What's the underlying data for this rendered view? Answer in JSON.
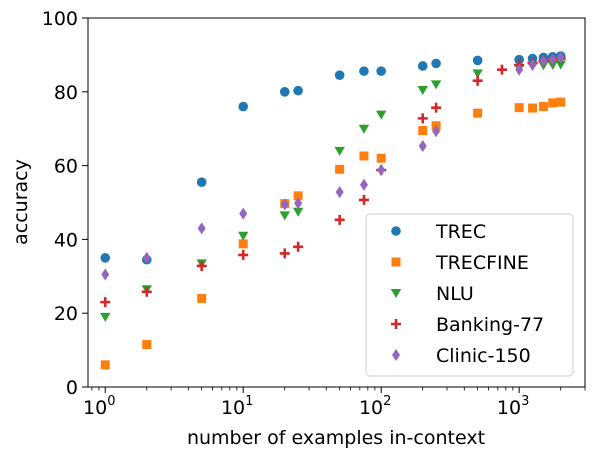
{
  "chart_data": {
    "type": "scatter",
    "xlabel": "number of examples in-context",
    "ylabel": "accuracy",
    "xscale": "log",
    "xlim": [
      0.75,
      3000
    ],
    "ylim": [
      0,
      100
    ],
    "grid": false,
    "legend_placement": "lower-right",
    "x_ticks": [
      {
        "value": 1,
        "base": "10",
        "exp": "0"
      },
      {
        "value": 10,
        "base": "10",
        "exp": "1"
      },
      {
        "value": 100,
        "base": "10",
        "exp": "2"
      },
      {
        "value": 1000,
        "base": "10",
        "exp": "3"
      }
    ],
    "y_ticks": [
      0,
      20,
      40,
      60,
      80,
      100
    ],
    "series": [
      {
        "name": "TREC",
        "color": "#1f77b4",
        "marker": "circle",
        "points": [
          [
            1,
            35
          ],
          [
            2,
            34.5
          ],
          [
            5,
            55.5
          ],
          [
            10,
            76
          ],
          [
            20,
            80
          ],
          [
            25,
            80.3
          ],
          [
            50,
            84.5
          ],
          [
            75,
            85.6
          ],
          [
            100,
            85.6
          ],
          [
            200,
            87
          ],
          [
            250,
            87.7
          ],
          [
            500,
            88.5
          ],
          [
            1000,
            88.7
          ],
          [
            1250,
            89
          ],
          [
            1500,
            89.3
          ],
          [
            1750,
            89.5
          ],
          [
            2000,
            89.7
          ]
        ]
      },
      {
        "name": "TRECFINE",
        "color": "#ff7f0e",
        "marker": "square",
        "points": [
          [
            1,
            6
          ],
          [
            2,
            11.5
          ],
          [
            5,
            24
          ],
          [
            10,
            38.8
          ],
          [
            20,
            49.7
          ],
          [
            25,
            51.8
          ],
          [
            50,
            59
          ],
          [
            75,
            62.6
          ],
          [
            100,
            62
          ],
          [
            200,
            69.5
          ],
          [
            250,
            70.8
          ],
          [
            500,
            74.2
          ],
          [
            1000,
            75.7
          ],
          [
            1250,
            75.6
          ],
          [
            1500,
            76
          ],
          [
            1750,
            77
          ],
          [
            2000,
            77.2
          ]
        ]
      },
      {
        "name": "NLU",
        "color": "#2ca02c",
        "marker": "triangle-down",
        "points": [
          [
            1,
            19
          ],
          [
            2,
            26.5
          ],
          [
            5,
            33.5
          ],
          [
            10,
            41
          ],
          [
            20,
            46.5
          ],
          [
            25,
            47.5
          ],
          [
            50,
            64
          ],
          [
            75,
            70
          ],
          [
            100,
            73.8
          ],
          [
            200,
            80.5
          ],
          [
            250,
            82
          ],
          [
            500,
            85
          ],
          [
            1000,
            86.5
          ],
          [
            1250,
            87
          ],
          [
            1500,
            87.2
          ],
          [
            1750,
            87.3
          ],
          [
            2000,
            87.4
          ]
        ]
      },
      {
        "name": "Banking-77",
        "color": "#d62728",
        "marker": "plus",
        "points": [
          [
            1,
            23
          ],
          [
            2,
            25.8
          ],
          [
            5,
            32.8
          ],
          [
            10,
            35.8
          ],
          [
            20,
            36.2
          ],
          [
            25,
            38
          ],
          [
            50,
            45.3
          ],
          [
            75,
            50.7
          ],
          [
            100,
            58.8
          ],
          [
            200,
            72.8
          ],
          [
            250,
            75.7
          ],
          [
            500,
            83
          ],
          [
            750,
            86
          ],
          [
            1000,
            87.2
          ],
          [
            1250,
            87.8
          ],
          [
            1500,
            88.3
          ],
          [
            1750,
            88.7
          ],
          [
            2000,
            89
          ]
        ]
      },
      {
        "name": "Clinic-150",
        "color": "#9467bd",
        "marker": "diamond",
        "points": [
          [
            1,
            30.5
          ],
          [
            2,
            35
          ],
          [
            5,
            43
          ],
          [
            10,
            47
          ],
          [
            20,
            49.5
          ],
          [
            25,
            49.8
          ],
          [
            50,
            52.8
          ],
          [
            75,
            54.8
          ],
          [
            100,
            58.8
          ],
          [
            200,
            65.3
          ],
          [
            250,
            69.3
          ],
          [
            1000,
            86
          ],
          [
            1250,
            87.3
          ],
          [
            1500,
            88.3
          ],
          [
            1750,
            88.8
          ],
          [
            2000,
            89.3
          ]
        ]
      }
    ]
  }
}
